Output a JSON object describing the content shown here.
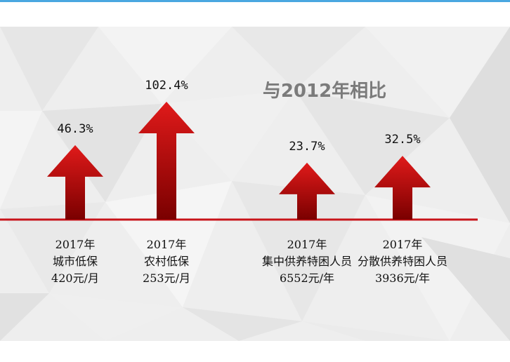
{
  "headline": "与2012年相比",
  "colors": {
    "arrow_top": "#e01a1a",
    "arrow_bottom": "#7a0000",
    "baseline": "#c8141a",
    "headline": "#7b7b7b",
    "accent_bar": "#4aa7e0"
  },
  "chart_data": {
    "type": "bar",
    "mark_shape": "up-arrow",
    "categories": [
      "城市低保",
      "农村低保",
      "集中供养特困人员",
      "分散供养特困人员"
    ],
    "series": [
      {
        "values": [
          46.3,
          102.4,
          23.7,
          32.5
        ]
      }
    ],
    "value_labels": [
      "46.3%",
      "102.4%",
      "23.7%",
      "32.5%"
    ],
    "category_labels": [
      {
        "year": "2017年",
        "name": "城市低保",
        "amount": "420元/月"
      },
      {
        "year": "2017年",
        "name": "农村低保",
        "amount": "253元/月"
      },
      {
        "year": "2017年",
        "name": "集中供养特困人员",
        "amount": "6552元/年"
      },
      {
        "year": "2017年",
        "name": "分散供养特困人员",
        "amount": "3936元/年"
      }
    ],
    "title": "与2012年相比",
    "xlabel": "",
    "ylabel": "",
    "ylim": [
      0,
      102.4
    ],
    "grid": false,
    "legend": "none"
  }
}
